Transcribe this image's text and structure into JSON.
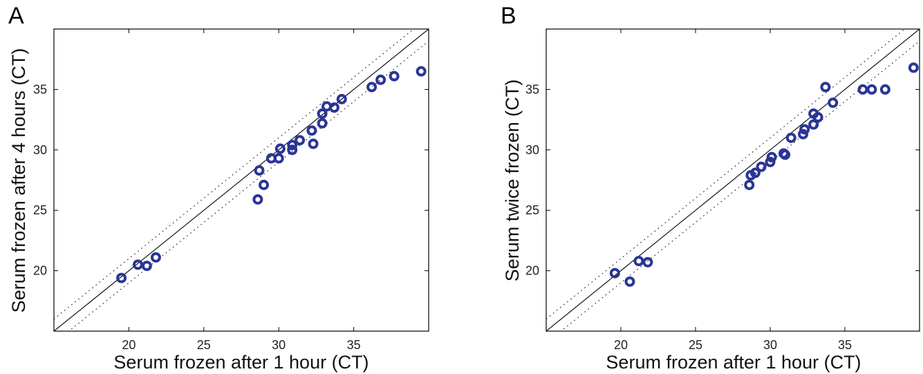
{
  "chart_data": [
    {
      "type": "scatter",
      "panel": "A",
      "xlabel": "Serum frozen after 1 hour (CT)",
      "ylabel": "Serum frozen after 4 hours (CT)",
      "xlim": [
        15,
        40
      ],
      "ylim": [
        15,
        40
      ],
      "xticks": [
        20,
        25,
        30,
        35
      ],
      "yticks": [
        20,
        25,
        30,
        35
      ],
      "grid": false,
      "reference_lines": [
        "identity",
        "identity +1",
        "identity -1"
      ],
      "marker_color": "#2b3596",
      "points": [
        {
          "x": 19.5,
          "y": 19.4
        },
        {
          "x": 20.6,
          "y": 20.5
        },
        {
          "x": 21.2,
          "y": 20.4
        },
        {
          "x": 21.8,
          "y": 21.1
        },
        {
          "x": 28.6,
          "y": 25.9
        },
        {
          "x": 28.7,
          "y": 28.3
        },
        {
          "x": 29.0,
          "y": 27.1
        },
        {
          "x": 29.5,
          "y": 29.3
        },
        {
          "x": 30.0,
          "y": 29.3
        },
        {
          "x": 30.1,
          "y": 30.1
        },
        {
          "x": 30.9,
          "y": 30.0
        },
        {
          "x": 30.9,
          "y": 30.4
        },
        {
          "x": 31.4,
          "y": 30.8
        },
        {
          "x": 32.2,
          "y": 31.6
        },
        {
          "x": 32.3,
          "y": 30.5
        },
        {
          "x": 32.9,
          "y": 32.2
        },
        {
          "x": 32.9,
          "y": 33.0
        },
        {
          "x": 33.2,
          "y": 33.6
        },
        {
          "x": 33.7,
          "y": 33.5
        },
        {
          "x": 34.2,
          "y": 34.2
        },
        {
          "x": 36.2,
          "y": 35.2
        },
        {
          "x": 36.8,
          "y": 35.8
        },
        {
          "x": 37.7,
          "y": 36.1
        },
        {
          "x": 39.5,
          "y": 36.5
        }
      ]
    },
    {
      "type": "scatter",
      "panel": "B",
      "xlabel": "Serum frozen after 1 hour (CT)",
      "ylabel": "Serum twice frozen (CT)",
      "xlim": [
        15,
        40
      ],
      "ylim": [
        15,
        40
      ],
      "xticks": [
        20,
        25,
        30,
        35
      ],
      "yticks": [
        20,
        25,
        30,
        35
      ],
      "grid": false,
      "reference_lines": [
        "identity",
        "identity +1",
        "identity -1"
      ],
      "marker_color": "#2b3596",
      "points": [
        {
          "x": 19.6,
          "y": 19.8
        },
        {
          "x": 20.6,
          "y": 19.1
        },
        {
          "x": 21.2,
          "y": 20.8
        },
        {
          "x": 21.8,
          "y": 20.7
        },
        {
          "x": 28.6,
          "y": 27.1
        },
        {
          "x": 28.7,
          "y": 27.9
        },
        {
          "x": 29.0,
          "y": 28.1
        },
        {
          "x": 29.4,
          "y": 28.6
        },
        {
          "x": 30.0,
          "y": 29.0
        },
        {
          "x": 30.1,
          "y": 29.4
        },
        {
          "x": 30.9,
          "y": 29.7
        },
        {
          "x": 31.0,
          "y": 29.6
        },
        {
          "x": 31.4,
          "y": 31.0
        },
        {
          "x": 32.2,
          "y": 31.3
        },
        {
          "x": 32.3,
          "y": 31.7
        },
        {
          "x": 32.9,
          "y": 32.1
        },
        {
          "x": 32.9,
          "y": 33.0
        },
        {
          "x": 33.2,
          "y": 32.7
        },
        {
          "x": 33.7,
          "y": 35.2
        },
        {
          "x": 34.2,
          "y": 33.9
        },
        {
          "x": 36.2,
          "y": 35.0
        },
        {
          "x": 36.8,
          "y": 35.0
        },
        {
          "x": 37.7,
          "y": 35.0
        },
        {
          "x": 39.6,
          "y": 36.8
        }
      ]
    }
  ]
}
